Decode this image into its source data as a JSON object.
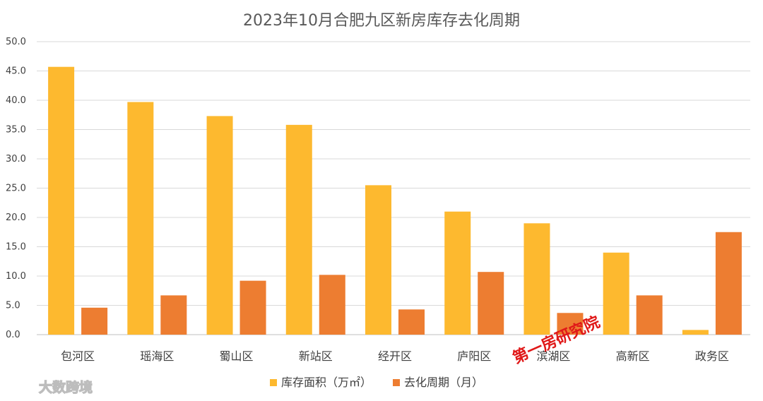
{
  "chart_data": {
    "type": "bar",
    "title": "2023年10月合肥九区新房库存去化周期",
    "categories": [
      "包河区",
      "瑶海区",
      "蜀山区",
      "新站区",
      "经开区",
      "庐阳区",
      "滨湖区",
      "高新区",
      "政务区"
    ],
    "series": [
      {
        "name": "库存面积（万㎡）",
        "color": "#FDB92F",
        "values": [
          45.7,
          39.7,
          37.3,
          35.8,
          25.5,
          21.0,
          19.0,
          14.0,
          0.8
        ]
      },
      {
        "name": "去化周期（月）",
        "color": "#ED7D31",
        "values": [
          4.6,
          6.7,
          9.2,
          10.2,
          4.3,
          10.7,
          3.7,
          6.7,
          17.5
        ]
      }
    ],
    "ylim": [
      0,
      50
    ],
    "yticks": [
      "0.0",
      "5.0",
      "10.0",
      "15.0",
      "20.0",
      "25.0",
      "30.0",
      "35.0",
      "40.0",
      "45.0",
      "50.0"
    ],
    "grid": true,
    "legend": "bottom"
  },
  "watermarks": {
    "red": "第一房研究院",
    "gray": "大数跨境"
  }
}
